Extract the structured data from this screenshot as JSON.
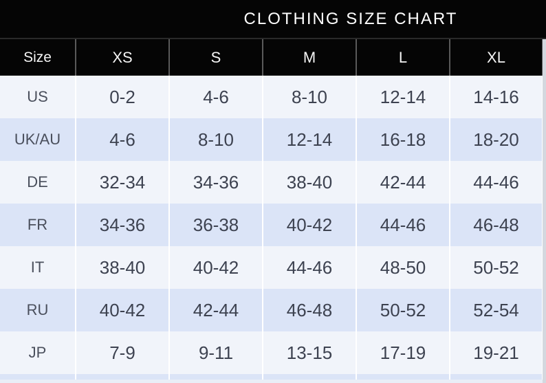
{
  "chart_data": {
    "type": "table",
    "title": "CLOTHING SIZE CHART",
    "columns": [
      "Size",
      "XS",
      "S",
      "M",
      "L",
      "XL"
    ],
    "rows": [
      {
        "label": "US",
        "values": [
          "0-2",
          "4-6",
          "8-10",
          "12-14",
          "14-16"
        ]
      },
      {
        "label": "UK/AU",
        "values": [
          "4-6",
          "8-10",
          "12-14",
          "16-18",
          "18-20"
        ]
      },
      {
        "label": "DE",
        "values": [
          "32-34",
          "34-36",
          "38-40",
          "42-44",
          "44-46"
        ]
      },
      {
        "label": "FR",
        "values": [
          "34-36",
          "36-38",
          "40-42",
          "44-46",
          "46-48"
        ]
      },
      {
        "label": "IT",
        "values": [
          "38-40",
          "40-42",
          "44-46",
          "48-50",
          "50-52"
        ]
      },
      {
        "label": "RU",
        "values": [
          "40-42",
          "42-44",
          "46-48",
          "50-52",
          "52-54"
        ]
      },
      {
        "label": "JP",
        "values": [
          "7-9",
          "9-11",
          "13-15",
          "17-19",
          "19-21"
        ]
      }
    ],
    "colors": {
      "header_bg": "#050505",
      "header_text": "#f5f5f5",
      "row_light": "#f1f4fa",
      "row_blue": "#dbe4f7",
      "cell_text": "#3d4250"
    }
  }
}
